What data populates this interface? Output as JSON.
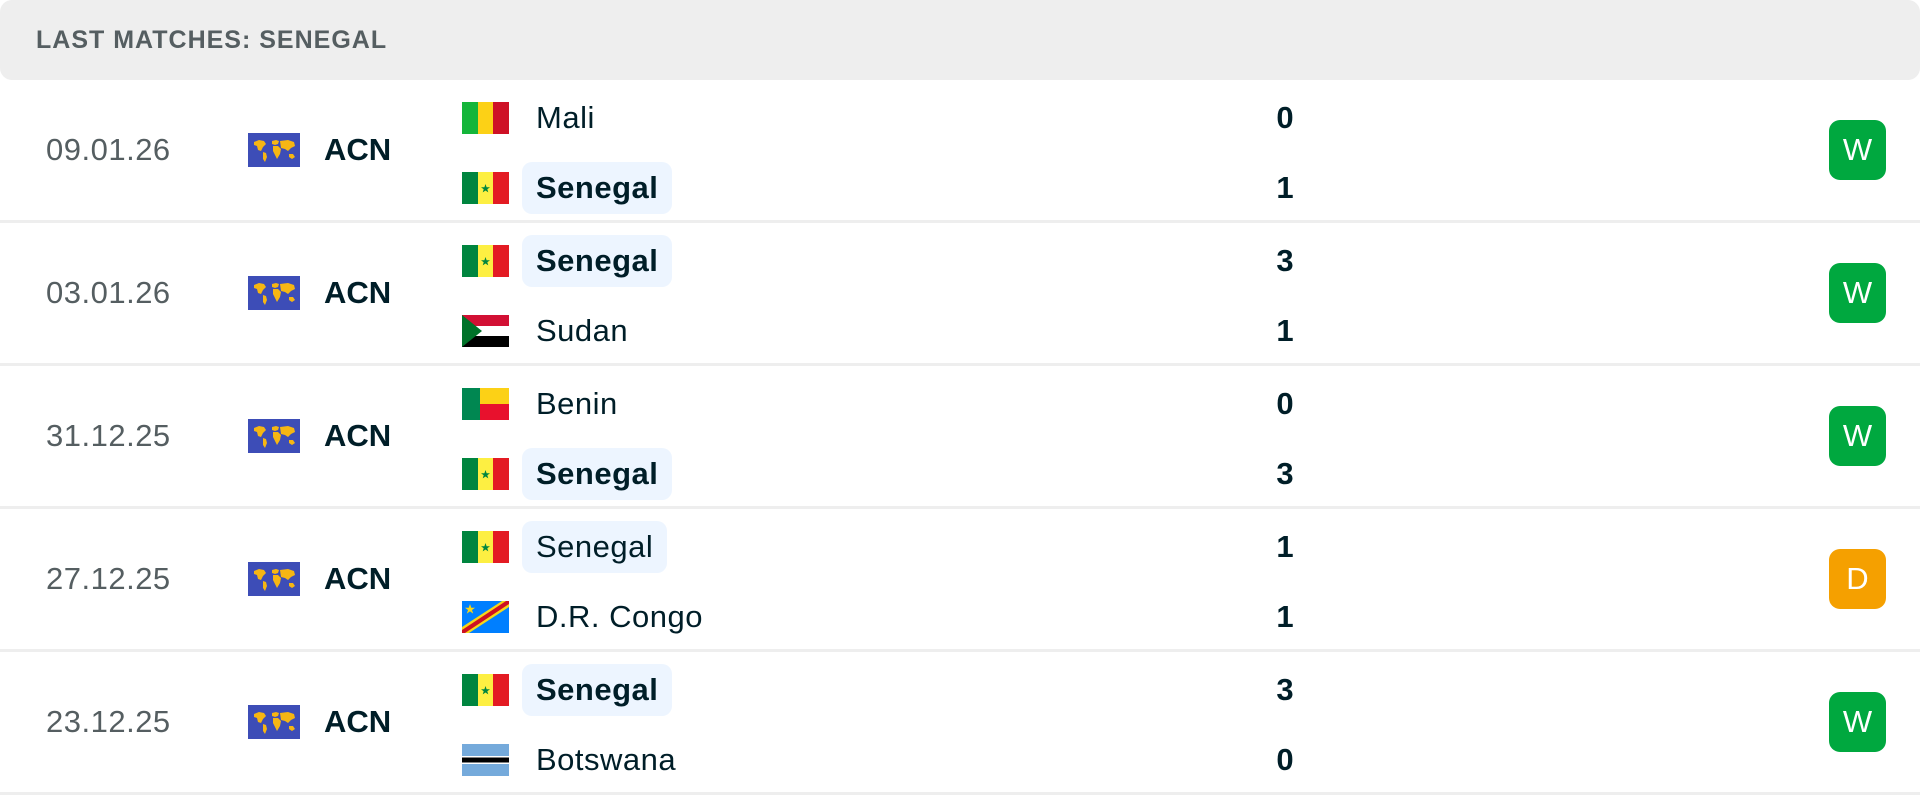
{
  "header": {
    "title": "LAST MATCHES: SENEGAL"
  },
  "colors": {
    "win": "#00a83f",
    "draw": "#f5a000",
    "highlight": "#edf5ff"
  },
  "matches": [
    {
      "date": "09.01.26",
      "competition": "ACN",
      "competition_icon": "world-map-flag-icon",
      "home": {
        "name": "Mali",
        "flag": "mali-flag-icon",
        "score": "0",
        "highlight": false,
        "bold": false
      },
      "away": {
        "name": "Senegal",
        "flag": "senegal-flag-icon",
        "score": "1",
        "highlight": true,
        "bold": true
      },
      "result": "W"
    },
    {
      "date": "03.01.26",
      "competition": "ACN",
      "competition_icon": "world-map-flag-icon",
      "home": {
        "name": "Senegal",
        "flag": "senegal-flag-icon",
        "score": "3",
        "highlight": true,
        "bold": true
      },
      "away": {
        "name": "Sudan",
        "flag": "sudan-flag-icon",
        "score": "1",
        "highlight": false,
        "bold": false
      },
      "result": "W"
    },
    {
      "date": "31.12.25",
      "competition": "ACN",
      "competition_icon": "world-map-flag-icon",
      "home": {
        "name": "Benin",
        "flag": "benin-flag-icon",
        "score": "0",
        "highlight": false,
        "bold": false
      },
      "away": {
        "name": "Senegal",
        "flag": "senegal-flag-icon",
        "score": "3",
        "highlight": true,
        "bold": true
      },
      "result": "W"
    },
    {
      "date": "27.12.25",
      "competition": "ACN",
      "competition_icon": "world-map-flag-icon",
      "home": {
        "name": "Senegal",
        "flag": "senegal-flag-icon",
        "score": "1",
        "highlight": true,
        "bold": false
      },
      "away": {
        "name": "D.R. Congo",
        "flag": "dr-congo-flag-icon",
        "score": "1",
        "highlight": false,
        "bold": false
      },
      "result": "D"
    },
    {
      "date": "23.12.25",
      "competition": "ACN",
      "competition_icon": "world-map-flag-icon",
      "home": {
        "name": "Senegal",
        "flag": "senegal-flag-icon",
        "score": "3",
        "highlight": true,
        "bold": true
      },
      "away": {
        "name": "Botswana",
        "flag": "botswana-flag-icon",
        "score": "0",
        "highlight": false,
        "bold": false
      },
      "result": "W"
    }
  ]
}
